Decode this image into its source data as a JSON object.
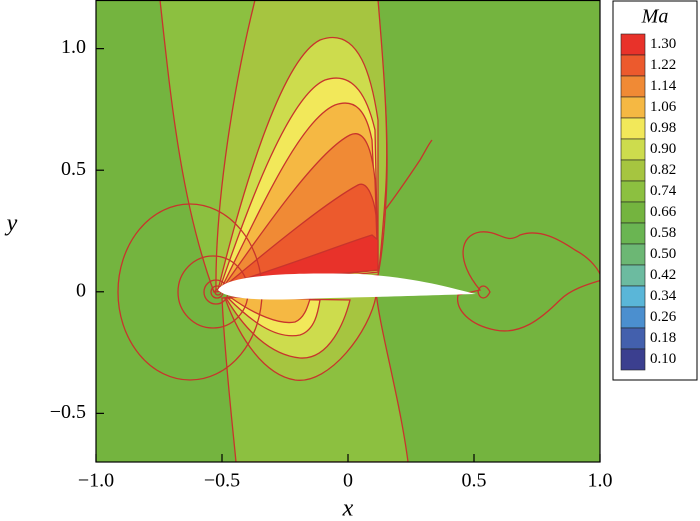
{
  "chart_data": {
    "type": "contour",
    "x_label": "x",
    "y_label": "y",
    "xlim": [
      -1,
      1
    ],
    "ylim": [
      -0.7,
      1.2
    ],
    "xticks": [
      {
        "value": -1,
        "label": "−1.0"
      },
      {
        "value": -0.5,
        "label": "−0.5"
      },
      0,
      0.5,
      {
        "value": 1,
        "label": "1.0"
      }
    ],
    "yticks": [
      {
        "value": -0.5,
        "label": "−0.5"
      },
      0,
      0.5,
      {
        "value": 1,
        "label": "1.0"
      }
    ],
    "line_color": "#c8342c",
    "colorbar": {
      "title": "Ma",
      "levels": [
        {
          "value": 1.3,
          "label": "1.30",
          "color": "#e8322a"
        },
        {
          "value": 1.22,
          "label": "1.22",
          "color": "#ec5a2d"
        },
        {
          "value": 1.14,
          "label": "1.14",
          "color": "#f08a35"
        },
        {
          "value": 1.06,
          "label": "1.06",
          "color": "#f5b843"
        },
        {
          "value": 0.98,
          "label": "0.98",
          "color": "#f2e85a"
        },
        {
          "value": 0.9,
          "label": "0.90",
          "color": "#cddc4d"
        },
        {
          "value": 0.82,
          "label": "0.82",
          "color": "#a6c540"
        },
        {
          "value": 0.74,
          "label": "0.74",
          "color": "#8cc040"
        },
        {
          "value": 0.66,
          "label": "0.66",
          "color": "#74b43f"
        },
        {
          "value": 0.58,
          "label": "0.58",
          "color": "#6ab552"
        },
        {
          "value": 0.5,
          "label": "0.50",
          "color": "#6cb774"
        },
        {
          "value": 0.42,
          "label": "0.42",
          "color": "#6cbba0"
        },
        {
          "value": 0.34,
          "label": "0.34",
          "color": "#5ab6d8"
        },
        {
          "value": 0.26,
          "label": "0.26",
          "color": "#4b8fcf"
        },
        {
          "value": 0.18,
          "label": "0.18",
          "color": "#4360ad"
        },
        {
          "value": 0.1,
          "label": "0.10",
          "color": "#3b3f8f"
        }
      ]
    }
  }
}
